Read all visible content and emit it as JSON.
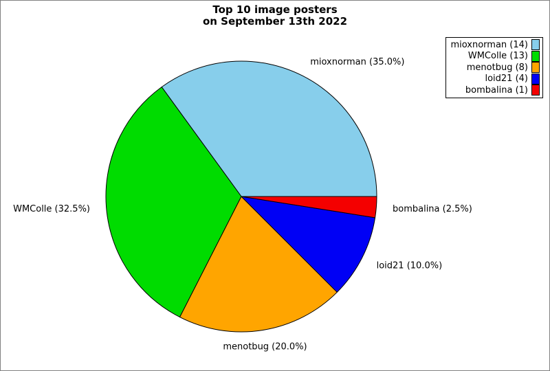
{
  "title": {
    "line1": "Top 10 image posters",
    "line2": "on September 13th 2022"
  },
  "chart_data": {
    "type": "pie",
    "title": "Top 10 image posters on September 13th 2022",
    "categories": [
      "mioxnorman",
      "WMColle",
      "menotbug",
      "loid21",
      "bombalina"
    ],
    "counts": [
      14,
      13,
      8,
      4,
      1
    ],
    "percents": [
      35.0,
      32.5,
      20.0,
      10.0,
      2.5
    ],
    "colors": [
      "#87CEEB",
      "#00DC00",
      "#FFA500",
      "#0000F5",
      "#F40000"
    ],
    "slice_labels": [
      "mioxnorman (35.0%)",
      "WMColle (32.5%)",
      "menotbug (20.0%)",
      "loid21 (10.0%)",
      "bombalina (2.5%)"
    ],
    "legend_entries": [
      "mioxnorman (14)",
      "WMColle (13)",
      "menotbug (8)",
      "loid21 (4)",
      "bombalina (1)"
    ],
    "start_angle_deg": 0,
    "direction": "counterclockwise",
    "legend_position": "top-right",
    "wedge_edge_color": "#000000",
    "label_distance": 1.12
  },
  "window": {
    "background": "#ffffff",
    "border_color": "#808080"
  }
}
